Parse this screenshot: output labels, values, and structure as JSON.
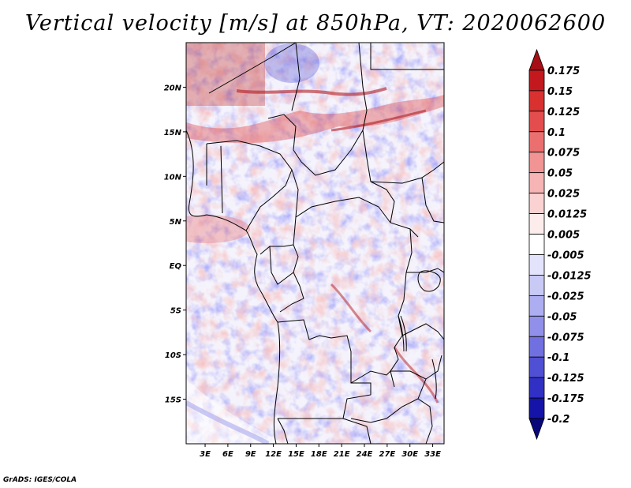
{
  "title": "Vertical velocity [m/s] at 850hPa, VT: 2020062600",
  "credit": "GrADS: IGES/COLA",
  "lat_ticks": [
    "20N",
    "15N",
    "10N",
    "5N",
    "EQ",
    "5S",
    "10S",
    "15S"
  ],
  "lat_values": [
    20,
    15,
    10,
    5,
    0,
    -5,
    -10,
    -15
  ],
  "lon_ticks": [
    "3E",
    "6E",
    "9E",
    "12E",
    "15E",
    "18E",
    "21E",
    "24E",
    "27E",
    "30E",
    "33E"
  ],
  "lon_values": [
    3,
    6,
    9,
    12,
    15,
    18,
    21,
    24,
    27,
    30,
    33
  ],
  "extent": {
    "lon": [
      0.5,
      34.5
    ],
    "lat": [
      -20,
      25
    ]
  },
  "colorbar": {
    "levels": [
      "0.175",
      "0.15",
      "0.125",
      "0.1",
      "0.075",
      "0.05",
      "0.025",
      "0.0125",
      "0.005",
      "-0.005",
      "-0.0125",
      "-0.025",
      "-0.05",
      "-0.075",
      "-0.1",
      "-0.125",
      "-0.175",
      "-0.2"
    ],
    "colors": [
      "#a50f15",
      "#c3191e",
      "#d93030",
      "#e34d4d",
      "#ec6f6f",
      "#f29494",
      "#f6b4b4",
      "#fad2d2",
      "#fdecec",
      "#ffffff",
      "#e3e3fb",
      "#c9c9f6",
      "#adadf1",
      "#9090ea",
      "#7070e0",
      "#5050d4",
      "#3030c4",
      "#1414a8",
      "#08087a"
    ]
  }
}
